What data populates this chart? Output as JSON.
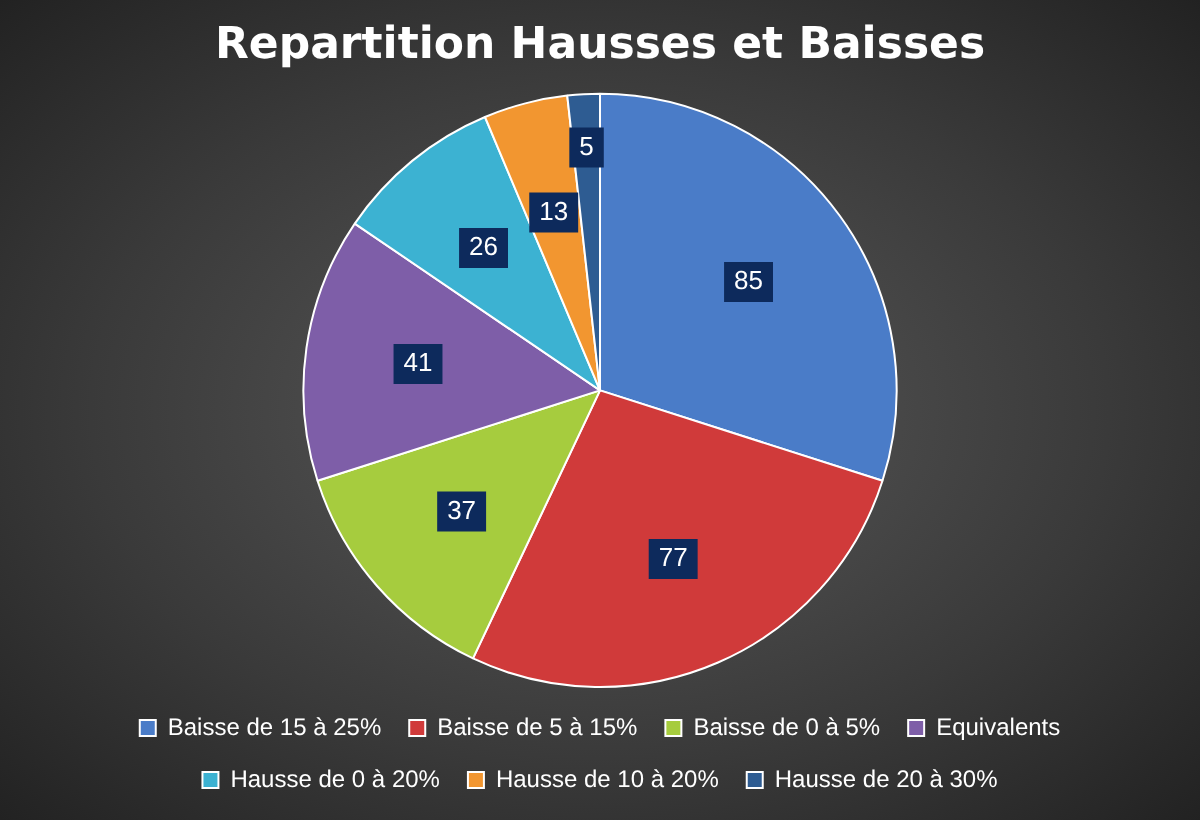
{
  "chart_data": {
    "type": "pie",
    "title": "Repartition Hausses et Baisses",
    "categories": [
      "Baisse de 15 à 25%",
      "Baisse de 5 à 15%",
      "Baisse de 0 à 5%",
      "Equivalents",
      "Hausse de 0 à 20%",
      "Hausse de 10 à 20%",
      "Hausse de 20 à 30%"
    ],
    "values": [
      85,
      77,
      37,
      41,
      26,
      13,
      5
    ],
    "colors": [
      "#4a7cc8",
      "#d03a3a",
      "#a6cc3e",
      "#7e5ea8",
      "#3cb2d2",
      "#f29630",
      "#2e5c92"
    ],
    "data_labels": true,
    "legend": "bottom"
  }
}
